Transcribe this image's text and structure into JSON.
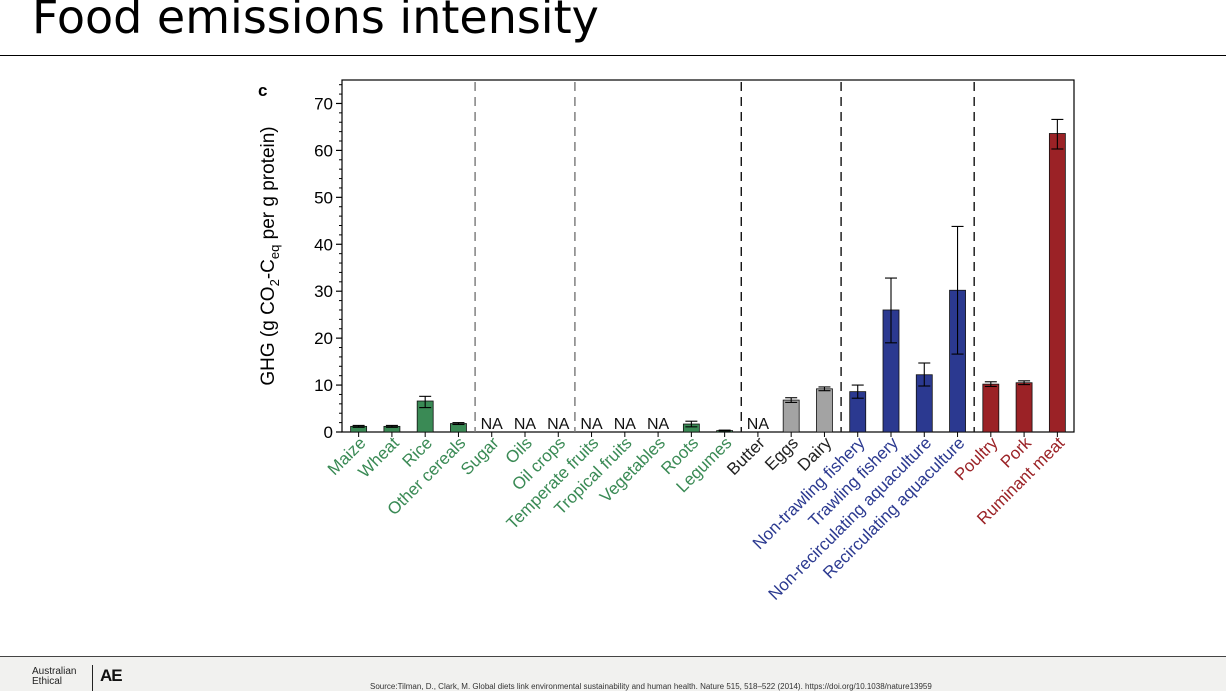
{
  "slide": {
    "title": "Food emissions intensity"
  },
  "footer": {
    "brand_line1": "Australian",
    "brand_line2": "Ethical",
    "brand_mark": "AE",
    "source": "Source:Tilman, D., Clark, M. Global diets link environmental sustainability and human health. Nature 515, 518–522 (2014). https://doi.org/10.1038/nature13959"
  },
  "chart_data": {
    "type": "bar",
    "panel_label": "c",
    "ylabel_parts": [
      "GHG (g CO",
      "2",
      "-C",
      "eq",
      " per g protein)"
    ],
    "ylim": [
      0,
      75
    ],
    "yticks": [
      0,
      10,
      20,
      30,
      40,
      50,
      60,
      70
    ],
    "na_label": "NA",
    "categories": [
      "Maize",
      "Wheat",
      "Rice",
      "Other cereals",
      "Sugar",
      "Oils",
      "Oil crops",
      "Temperate fruits",
      "Tropical fruits",
      "Vegetables",
      "Roots",
      "Legumes",
      "Butter",
      "Eggs",
      "Dairy",
      "Non-trawling fishery",
      "Trawling fishery",
      "Non-recirculating aquaculture",
      "Recirculating aquaculture",
      "Poultry",
      "Pork",
      "Ruminant meat"
    ],
    "values": [
      1.2,
      1.2,
      6.6,
      1.8,
      null,
      null,
      null,
      null,
      null,
      null,
      1.7,
      0.3,
      null,
      6.8,
      9.2,
      8.6,
      26.0,
      12.2,
      30.2,
      10.2,
      10.5,
      63.6
    ],
    "error_low": [
      1.0,
      1.0,
      5.2,
      1.6,
      null,
      null,
      null,
      null,
      null,
      null,
      1.1,
      0.2,
      null,
      6.3,
      8.8,
      7.2,
      19.0,
      9.8,
      16.6,
      9.7,
      10.1,
      60.3
    ],
    "error_high": [
      1.4,
      1.4,
      7.6,
      2.0,
      null,
      null,
      null,
      null,
      null,
      null,
      2.3,
      0.4,
      null,
      7.3,
      9.6,
      10.0,
      32.8,
      14.7,
      43.8,
      10.7,
      10.9,
      66.6
    ],
    "groups": [
      "green",
      "green",
      "green",
      "green",
      "green",
      "green",
      "green",
      "green",
      "green",
      "green",
      "green",
      "green",
      "black",
      "gray",
      "gray",
      "blue",
      "blue",
      "blue",
      "blue",
      "red",
      "red",
      "red"
    ],
    "colors": {
      "green_bar": "#3a8a55",
      "green_label": "#3a8a55",
      "black_label": "#222222",
      "gray_bar": "#a3a3a3",
      "gray_label": "#222222",
      "blue_bar": "#2b3990",
      "blue_label": "#2b3990",
      "red_bar": "#9b2226",
      "red_label": "#9b2226"
    },
    "dividers": [
      {
        "after_index": 3,
        "style": "gray"
      },
      {
        "after_index": 6,
        "style": "gray"
      },
      {
        "after_index": 11,
        "style": "black"
      },
      {
        "after_index": 14,
        "style": "black"
      },
      {
        "after_index": 18,
        "style": "black"
      }
    ],
    "grid": false,
    "legend": "none"
  }
}
